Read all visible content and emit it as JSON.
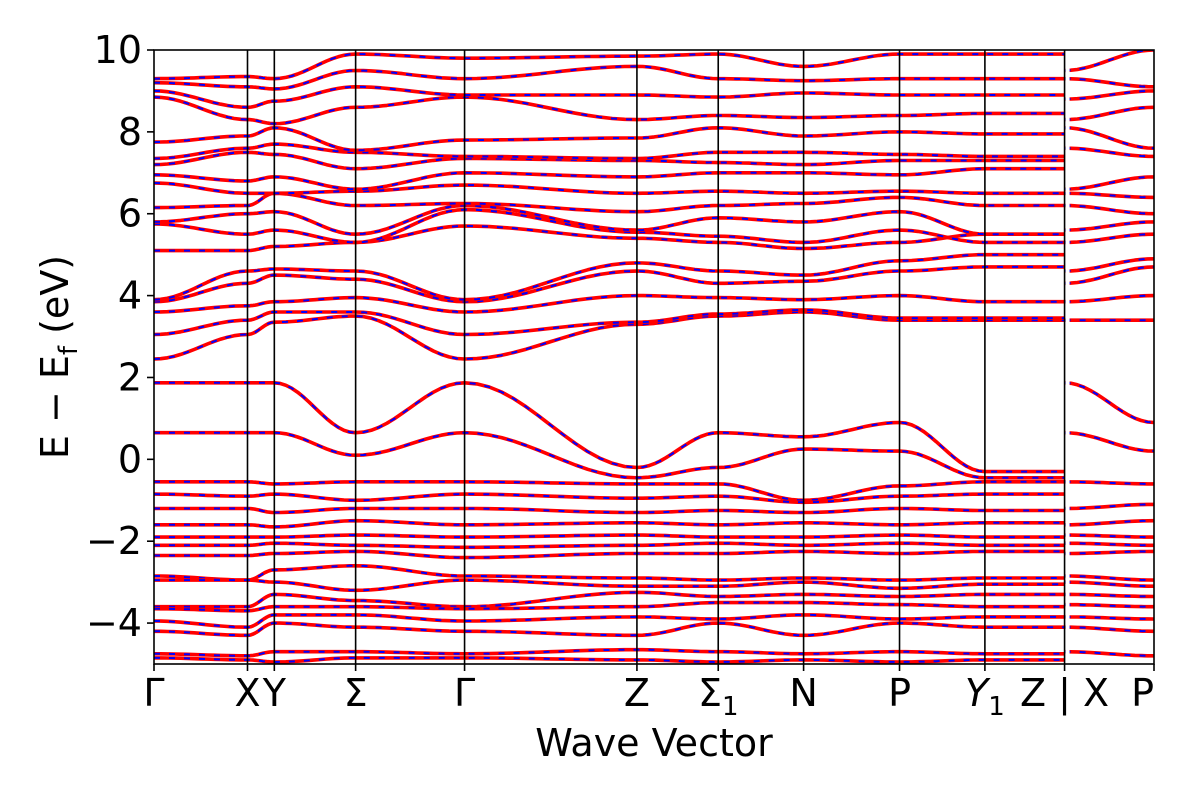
{
  "chart_data": {
    "type": "line",
    "xlabel": "Wave Vector",
    "ylabel": "E − E_f (eV)",
    "ylabel_parts": {
      "main": "E − E",
      "sub": "f",
      "unit": " (eV)"
    },
    "ylim": [
      -5,
      10
    ],
    "yticks": [
      -4,
      -2,
      0,
      2,
      4,
      6,
      8,
      10
    ],
    "ytick_labels": [
      "−4",
      "−2",
      "0",
      "2",
      "4",
      "6",
      "8",
      "10"
    ],
    "xlim": [
      0,
      12.3
    ],
    "kpoints": [
      {
        "label": "Γ",
        "x": 0
      },
      {
        "label": "X",
        "x": 1.15
      },
      {
        "label": "Y",
        "x": 1.48
      },
      {
        "label": "Σ",
        "x": 2.48
      },
      {
        "label": "Γ",
        "x": 3.82
      },
      {
        "label": "Z",
        "x": 5.94
      },
      {
        "label": "Σ",
        "sub": "1",
        "x": 6.94
      },
      {
        "label": "N",
        "x": 7.99
      },
      {
        "label": "P",
        "x": 9.17
      },
      {
        "label": "Y",
        "sub": "1",
        "italic": true,
        "x": 10.22
      },
      {
        "label": "Z | X",
        "x": 11.2
      },
      {
        "label": "P",
        "x": 12.3
      }
    ],
    "path_break_x": 11.2,
    "grid": false,
    "series": [
      {
        "x": [
          0,
          1.15,
          1.48,
          2.48,
          3.82,
          5.94,
          6.94,
          7.99,
          9.17,
          10.22,
          11.2
        ],
        "y": [
          1.87,
          1.87,
          1.87,
          0.65,
          1.87,
          -0.2,
          0.65,
          0.55,
          0.9,
          -0.3,
          -0.3
        ]
      },
      {
        "x": [
          11.2,
          12.3
        ],
        "y": [
          1.87,
          0.9
        ]
      },
      {
        "x": [
          0,
          1.15,
          1.48,
          2.48,
          3.82,
          5.94,
          6.94,
          7.99,
          9.17,
          10.22,
          11.2
        ],
        "y": [
          0.65,
          0.65,
          0.65,
          0.1,
          0.65,
          -0.45,
          -0.2,
          0.25,
          0.2,
          -0.45,
          -0.45
        ]
      },
      {
        "x": [
          11.2,
          12.3
        ],
        "y": [
          0.65,
          0.2
        ]
      },
      {
        "x": [
          0,
          1.15,
          1.48,
          2.48,
          3.82,
          5.94,
          6.94,
          7.99,
          9.17,
          10.22,
          11.2
        ],
        "y": [
          2.45,
          3.05,
          3.35,
          3.5,
          2.45,
          3.3,
          3.5,
          3.6,
          3.4,
          3.4,
          3.4
        ]
      },
      {
        "x": [
          11.2,
          12.3
        ],
        "y": [
          3.4,
          3.4
        ]
      },
      {
        "x": [
          0,
          1.15,
          1.48,
          2.48,
          3.82,
          5.94,
          6.94,
          7.99,
          9.17,
          10.22,
          11.2
        ],
        "y": [
          3.05,
          3.4,
          3.6,
          3.6,
          3.05,
          3.35,
          3.55,
          3.65,
          3.45,
          3.45,
          3.45
        ]
      },
      {
        "x": [
          0,
          1.15,
          1.48,
          2.48,
          3.82,
          5.94,
          6.94,
          7.99,
          9.17,
          10.22,
          11.2
        ],
        "y": [
          3.6,
          3.75,
          3.85,
          3.95,
          3.6,
          4.0,
          3.95,
          3.9,
          4.0,
          3.85,
          3.85
        ]
      },
      {
        "x": [
          11.2,
          12.3
        ],
        "y": [
          3.85,
          4.0
        ]
      },
      {
        "x": [
          0,
          1.15,
          1.48,
          2.48,
          3.82,
          5.94,
          6.94,
          7.99,
          9.17,
          10.22,
          11.2
        ],
        "y": [
          3.85,
          4.3,
          4.5,
          4.4,
          3.85,
          4.6,
          4.3,
          4.35,
          4.6,
          4.7,
          4.7
        ]
      },
      {
        "x": [
          11.2,
          12.3
        ],
        "y": [
          4.3,
          4.7
        ]
      },
      {
        "x": [
          0,
          1.15,
          1.48,
          2.48,
          3.82,
          5.94,
          6.94,
          7.99,
          9.17,
          10.22,
          11.2
        ],
        "y": [
          3.9,
          4.6,
          4.65,
          4.6,
          3.9,
          4.8,
          4.6,
          4.5,
          4.85,
          5.0,
          5.0
        ]
      },
      {
        "x": [
          11.2,
          12.3
        ],
        "y": [
          4.6,
          4.9
        ]
      },
      {
        "x": [
          0,
          1.15,
          1.48,
          2.48,
          3.82,
          5.94,
          6.94,
          7.99,
          9.17,
          10.22,
          11.2
        ],
        "y": [
          5.1,
          5.1,
          5.2,
          5.3,
          5.7,
          5.4,
          5.3,
          5.15,
          5.3,
          5.5,
          5.5
        ]
      },
      {
        "x": [
          11.2,
          12.3
        ],
        "y": [
          5.3,
          5.5
        ]
      },
      {
        "x": [
          0,
          1.15,
          1.48,
          2.48,
          3.82,
          5.94,
          6.94,
          7.99,
          9.17,
          10.22,
          11.2
        ],
        "y": [
          5.75,
          5.5,
          5.6,
          5.3,
          6.1,
          5.55,
          5.45,
          5.3,
          5.6,
          5.3,
          5.3
        ]
      },
      {
        "x": [
          11.2,
          12.3
        ],
        "y": [
          5.6,
          5.8
        ]
      },
      {
        "x": [
          0,
          1.15,
          1.48,
          2.48,
          3.82,
          5.94,
          6.94,
          7.99,
          9.17,
          10.22,
          11.2
        ],
        "y": [
          5.8,
          6.0,
          6.05,
          5.5,
          6.2,
          5.6,
          5.9,
          5.8,
          6.05,
          5.5,
          5.5
        ]
      },
      {
        "x": [
          0,
          1.15,
          1.48,
          2.48,
          3.82,
          5.94,
          6.94,
          7.99,
          9.17,
          10.22,
          11.2
        ],
        "y": [
          6.15,
          6.2,
          6.5,
          6.2,
          6.25,
          6.05,
          6.2,
          6.25,
          6.4,
          6.2,
          6.2
        ]
      },
      {
        "x": [
          11.2,
          12.3
        ],
        "y": [
          6.2,
          6.0
        ]
      },
      {
        "x": [
          0,
          1.15,
          1.48,
          2.48,
          3.82,
          5.94,
          6.94,
          7.99,
          9.17,
          10.22,
          11.2
        ],
        "y": [
          6.75,
          6.5,
          6.5,
          6.55,
          6.7,
          6.5,
          6.55,
          6.5,
          6.55,
          6.5,
          6.5
        ]
      },
      {
        "x": [
          11.2,
          12.3
        ],
        "y": [
          6.5,
          6.4
        ]
      },
      {
        "x": [
          0,
          1.15,
          1.48,
          2.48,
          3.82,
          5.94,
          6.94,
          7.99,
          9.17,
          10.22,
          11.2
        ],
        "y": [
          6.95,
          6.8,
          6.9,
          6.6,
          7.0,
          6.9,
          7.0,
          7.0,
          6.95,
          7.1,
          7.1
        ]
      },
      {
        "x": [
          11.2,
          12.3
        ],
        "y": [
          6.6,
          6.9
        ]
      },
      {
        "x": [
          0,
          1.15,
          1.48,
          2.48,
          3.82,
          5.94,
          6.94,
          7.99,
          9.17,
          10.22,
          11.2
        ],
        "y": [
          7.2,
          7.5,
          7.45,
          7.1,
          7.35,
          7.3,
          7.25,
          7.2,
          7.3,
          7.3,
          7.3
        ]
      },
      {
        "x": [
          11.2,
          12.3
        ],
        "y": [
          7.6,
          7.4
        ]
      },
      {
        "x": [
          0,
          1.15,
          1.48,
          2.48,
          3.82,
          5.94,
          6.94,
          7.99,
          9.17,
          10.22,
          11.2
        ],
        "y": [
          7.35,
          7.6,
          7.7,
          7.5,
          7.4,
          7.35,
          7.5,
          7.5,
          7.45,
          7.4,
          7.4
        ]
      },
      {
        "x": [
          0,
          1.15,
          1.48,
          2.48,
          3.82,
          5.94,
          6.94,
          7.99,
          9.17,
          10.22,
          11.2
        ],
        "y": [
          7.75,
          7.9,
          8.1,
          7.55,
          7.8,
          7.85,
          8.1,
          7.9,
          8.0,
          7.95,
          7.95
        ]
      },
      {
        "x": [
          11.2,
          12.3
        ],
        "y": [
          8.1,
          7.6
        ]
      },
      {
        "x": [
          0,
          1.15,
          1.48,
          2.48,
          3.82,
          5.94,
          6.94,
          7.99,
          9.17,
          10.22,
          11.2
        ],
        "y": [
          8.85,
          8.3,
          8.2,
          8.6,
          8.85,
          8.3,
          8.4,
          8.35,
          8.4,
          8.45,
          8.45
        ]
      },
      {
        "x": [
          11.2,
          12.3
        ],
        "y": [
          8.3,
          8.6
        ]
      },
      {
        "x": [
          0,
          1.15,
          1.48,
          2.48,
          3.82,
          5.94,
          6.94,
          7.99,
          9.17,
          10.22,
          11.2
        ],
        "y": [
          9.0,
          8.6,
          8.75,
          9.1,
          8.9,
          8.9,
          8.85,
          8.95,
          8.9,
          8.9,
          8.9
        ]
      },
      {
        "x": [
          11.2,
          12.3
        ],
        "y": [
          8.8,
          9.0
        ]
      },
      {
        "x": [
          0,
          1.15,
          1.48,
          2.48,
          3.82,
          5.94,
          6.94,
          7.99,
          9.17,
          10.22,
          11.2
        ],
        "y": [
          9.2,
          9.1,
          9.05,
          9.5,
          9.3,
          9.6,
          9.3,
          9.25,
          9.3,
          9.3,
          9.3
        ]
      },
      {
        "x": [
          11.2,
          12.3
        ],
        "y": [
          9.3,
          9.1
        ]
      },
      {
        "x": [
          0,
          1.15,
          1.48,
          2.48,
          3.82,
          5.94,
          6.94,
          7.99,
          9.17,
          10.22,
          11.2
        ],
        "y": [
          9.3,
          9.35,
          9.3,
          9.9,
          9.8,
          9.85,
          9.9,
          9.6,
          9.9,
          9.9,
          9.9
        ]
      },
      {
        "x": [
          11.2,
          12.3
        ],
        "y": [
          9.5,
          10.0
        ]
      },
      {
        "x": [
          0,
          1.15,
          1.48,
          2.48,
          3.82,
          5.94,
          6.94,
          7.99,
          9.17,
          10.22,
          11.2
        ],
        "y": [
          -0.55,
          -0.55,
          -0.6,
          -0.55,
          -0.55,
          -0.6,
          -0.6,
          -1.0,
          -0.65,
          -0.55,
          -0.55
        ]
      },
      {
        "x": [
          11.2,
          12.3
        ],
        "y": [
          -0.55,
          -0.6
        ]
      },
      {
        "x": [
          0,
          1.15,
          1.48,
          2.48,
          3.82,
          5.94,
          6.94,
          7.99,
          9.17,
          10.22,
          11.2
        ],
        "y": [
          -0.85,
          -0.9,
          -0.85,
          -1.0,
          -0.85,
          -0.95,
          -0.9,
          -1.05,
          -0.9,
          -0.85,
          -0.85
        ]
      },
      {
        "x": [
          0,
          1.15,
          1.48,
          2.48,
          3.82,
          5.94,
          6.94,
          7.99,
          9.17,
          10.22,
          11.2
        ],
        "y": [
          -1.2,
          -1.2,
          -1.3,
          -1.2,
          -1.2,
          -1.3,
          -1.25,
          -1.3,
          -1.2,
          -1.25,
          -1.25
        ]
      },
      {
        "x": [
          11.2,
          12.3
        ],
        "y": [
          -1.2,
          -1.1
        ]
      },
      {
        "x": [
          0,
          1.15,
          1.48,
          2.48,
          3.82,
          5.94,
          6.94,
          7.99,
          9.17,
          10.22,
          11.2
        ],
        "y": [
          -1.6,
          -1.6,
          -1.65,
          -1.5,
          -1.6,
          -1.55,
          -1.6,
          -1.55,
          -1.6,
          -1.55,
          -1.55
        ]
      },
      {
        "x": [
          11.2,
          12.3
        ],
        "y": [
          -1.6,
          -1.5
        ]
      },
      {
        "x": [
          0,
          1.15,
          1.48,
          2.48,
          3.82,
          5.94,
          6.94,
          7.99,
          9.17,
          10.22,
          11.2
        ],
        "y": [
          -1.9,
          -1.9,
          -1.9,
          -1.85,
          -1.9,
          -1.85,
          -1.9,
          -1.9,
          -1.85,
          -1.9,
          -1.9
        ]
      },
      {
        "x": [
          11.2,
          12.3
        ],
        "y": [
          -1.85,
          -1.9
        ]
      },
      {
        "x": [
          0,
          1.15,
          1.48,
          2.48,
          3.82,
          5.94,
          6.94,
          7.99,
          9.17,
          10.22,
          11.2
        ],
        "y": [
          -2.1,
          -2.1,
          -2.05,
          -2.1,
          -2.15,
          -2.1,
          -2.05,
          -2.1,
          -2.05,
          -2.1,
          -2.1
        ]
      },
      {
        "x": [
          11.2,
          12.3
        ],
        "y": [
          -2.05,
          -2.1
        ]
      },
      {
        "x": [
          0,
          1.15,
          1.48,
          2.48,
          3.82,
          5.94,
          6.94,
          7.99,
          9.17,
          10.22,
          11.2
        ],
        "y": [
          -2.35,
          -2.35,
          -2.3,
          -2.25,
          -2.4,
          -2.3,
          -2.3,
          -2.25,
          -2.3,
          -2.25,
          -2.25
        ]
      },
      {
        "x": [
          11.2,
          12.3
        ],
        "y": [
          -2.3,
          -2.25
        ]
      },
      {
        "x": [
          0,
          1.15,
          1.48,
          2.48,
          3.82,
          5.94,
          6.94,
          7.99,
          9.17,
          10.22,
          11.2
        ],
        "y": [
          -2.85,
          -2.95,
          -2.7,
          -2.6,
          -2.85,
          -2.9,
          -2.95,
          -2.9,
          -2.95,
          -2.9,
          -2.9
        ]
      },
      {
        "x": [
          11.2,
          12.3
        ],
        "y": [
          -2.85,
          -2.95
        ]
      },
      {
        "x": [
          0,
          1.15,
          1.48,
          2.48,
          3.82,
          5.94,
          6.94,
          7.99,
          9.17,
          10.22,
          11.2
        ],
        "y": [
          -2.95,
          -2.95,
          -3.0,
          -3.2,
          -2.95,
          -3.1,
          -3.1,
          -3.0,
          -3.15,
          -3.05,
          -3.05
        ]
      },
      {
        "x": [
          11.2,
          12.3
        ],
        "y": [
          -3.0,
          -3.1
        ]
      },
      {
        "x": [
          0,
          1.15,
          1.48,
          2.48,
          3.82,
          5.94,
          6.94,
          7.99,
          9.17,
          10.22,
          11.2
        ],
        "y": [
          -3.6,
          -3.6,
          -3.3,
          -3.45,
          -3.6,
          -3.25,
          -3.35,
          -3.3,
          -3.35,
          -3.3,
          -3.3
        ]
      },
      {
        "x": [
          11.2,
          12.3
        ],
        "y": [
          -3.3,
          -3.35
        ]
      },
      {
        "x": [
          0,
          1.15,
          1.48,
          2.48,
          3.82,
          5.94,
          6.94,
          7.99,
          9.17,
          10.22,
          11.2
        ],
        "y": [
          -3.65,
          -3.7,
          -3.6,
          -3.6,
          -3.65,
          -3.6,
          -3.5,
          -3.5,
          -3.55,
          -3.6,
          -3.6
        ]
      },
      {
        "x": [
          11.2,
          12.3
        ],
        "y": [
          -3.55,
          -3.6
        ]
      },
      {
        "x": [
          0,
          1.15,
          1.48,
          2.48,
          3.82,
          5.94,
          6.94,
          7.99,
          9.17,
          10.22,
          11.2
        ],
        "y": [
          -3.95,
          -4.1,
          -3.8,
          -3.8,
          -3.95,
          -3.85,
          -3.9,
          -3.8,
          -3.9,
          -3.85,
          -3.85
        ]
      },
      {
        "x": [
          11.2,
          12.3
        ],
        "y": [
          -3.85,
          -3.9
        ]
      },
      {
        "x": [
          0,
          1.15,
          1.48,
          2.48,
          3.82,
          5.94,
          6.94,
          7.99,
          9.17,
          10.22,
          11.2
        ],
        "y": [
          -4.2,
          -4.3,
          -4.0,
          -4.1,
          -4.2,
          -4.3,
          -4.0,
          -4.3,
          -4.0,
          -4.1,
          -4.1
        ]
      },
      {
        "x": [
          11.2,
          12.3
        ],
        "y": [
          -4.1,
          -4.2
        ]
      },
      {
        "x": [
          0,
          1.15,
          1.48,
          2.48,
          3.82,
          5.94,
          6.94,
          7.99,
          9.17,
          10.22,
          11.2
        ],
        "y": [
          -4.75,
          -4.8,
          -4.7,
          -4.7,
          -4.75,
          -4.65,
          -4.7,
          -4.75,
          -4.7,
          -4.75,
          -4.75
        ]
      },
      {
        "x": [
          11.2,
          12.3
        ],
        "y": [
          -4.7,
          -4.8
        ]
      },
      {
        "x": [
          0,
          1.15,
          1.48,
          2.48,
          3.82,
          5.94,
          6.94,
          7.99,
          9.17,
          10.22,
          11.2
        ],
        "y": [
          -4.85,
          -4.9,
          -4.95,
          -4.85,
          -4.85,
          -4.9,
          -4.95,
          -4.9,
          -4.95,
          -4.9,
          -4.9
        ]
      }
    ],
    "line_style": {
      "outer_color": "#ff0000",
      "inner_color": "#0000ff"
    }
  }
}
